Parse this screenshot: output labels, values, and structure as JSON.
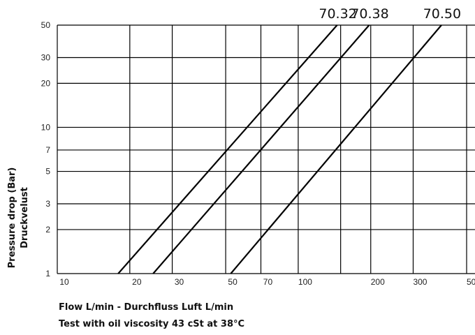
{
  "chart_data": {
    "type": "line",
    "x_scale": "log",
    "y_scale": "log",
    "xlim": [
      10,
      500
    ],
    "ylim": [
      1,
      50
    ],
    "x_ticks": [
      10,
      20,
      30,
      50,
      70,
      100,
      200,
      300,
      500
    ],
    "y_ticks": [
      1,
      2,
      3,
      5,
      7,
      10,
      20,
      30,
      50
    ],
    "x_grid": [
      10,
      20,
      30,
      50,
      70,
      100,
      150,
      200,
      300,
      500
    ],
    "y_grid": [
      1,
      2,
      3,
      5,
      7,
      10,
      20,
      30,
      50
    ],
    "grid": true,
    "xlabel": "Flow L/min - Durchfluss Luft L/min",
    "ylabel": [
      "Pressure drop (Bar)",
      "Druckvelust"
    ],
    "note": "Test with oil viscosity 43 cSt at 38°C",
    "series": [
      {
        "name": "70.32",
        "x": [
          17.9,
          145
        ],
        "y": [
          1,
          50
        ]
      },
      {
        "name": "70.38",
        "x": [
          25,
          197
        ],
        "y": [
          1,
          50
        ]
      },
      {
        "name": "70.50",
        "x": [
          52.5,
          393
        ],
        "y": [
          1,
          50
        ]
      }
    ]
  }
}
